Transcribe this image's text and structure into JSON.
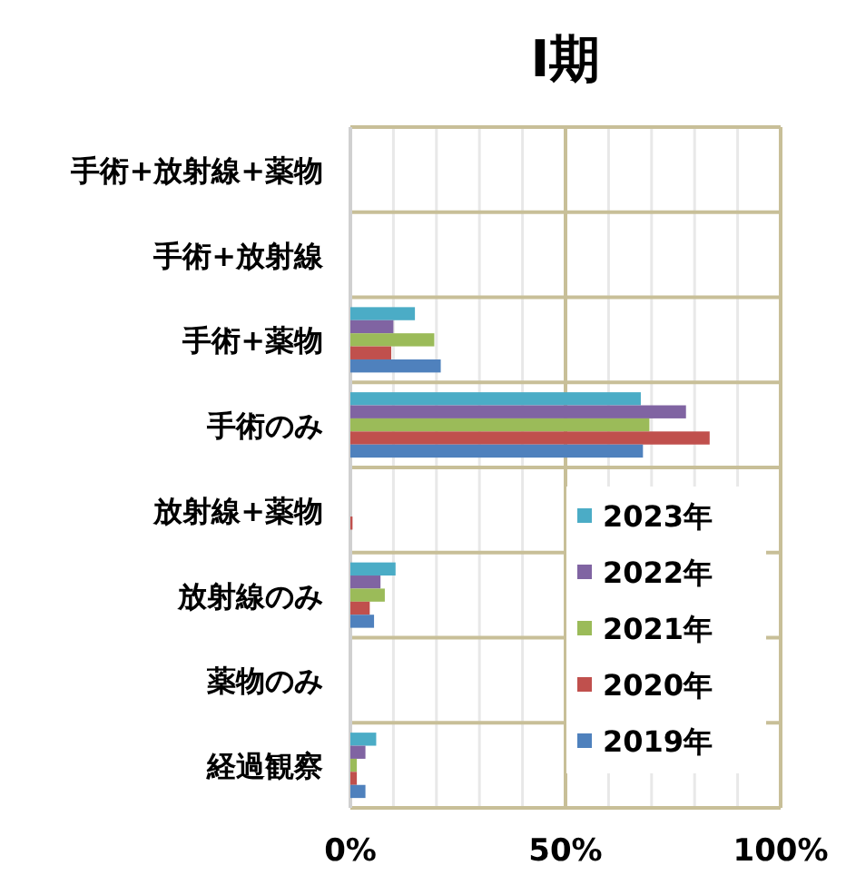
{
  "chart_data": {
    "type": "bar",
    "orientation": "horizontal",
    "title": "Ⅰ期",
    "categories": [
      "手術+放射線+薬物",
      "手術+放射線",
      "手術+薬物",
      "手術のみ",
      "放射線+薬物",
      "放射線のみ",
      "薬物のみ",
      "経過観察"
    ],
    "series": [
      {
        "name": "2023年",
        "color": "#4bacc6",
        "values": [
          0,
          0,
          15,
          67.5,
          0,
          10.5,
          0,
          6
        ]
      },
      {
        "name": "2022年",
        "color": "#8064a2",
        "values": [
          0,
          0,
          10,
          78,
          0,
          7,
          0,
          3.5
        ]
      },
      {
        "name": "2021年",
        "color": "#9bbb59",
        "values": [
          0,
          0,
          19.5,
          69.5,
          0,
          8,
          0,
          1.5
        ]
      },
      {
        "name": "2020年",
        "color": "#c0504d",
        "values": [
          0,
          0,
          9.5,
          83.5,
          0.5,
          4.5,
          0,
          1.5
        ]
      },
      {
        "name": "2019年",
        "color": "#4f81bd",
        "values": [
          0,
          0,
          21,
          68,
          0,
          5.5,
          0,
          3.5
        ]
      }
    ],
    "xlim": [
      0,
      100
    ],
    "xticks": [
      {
        "value": 0,
        "label": "0%"
      },
      {
        "value": 10,
        "label": null
      },
      {
        "value": 20,
        "label": null
      },
      {
        "value": 30,
        "label": null
      },
      {
        "value": 40,
        "label": null
      },
      {
        "value": 50,
        "label": "50%"
      },
      {
        "value": 60,
        "label": null
      },
      {
        "value": 70,
        "label": null
      },
      {
        "value": 80,
        "label": null
      },
      {
        "value": 90,
        "label": null
      },
      {
        "value": 100,
        "label": "100%"
      }
    ],
    "grid": "x",
    "legend": "bottom right"
  }
}
